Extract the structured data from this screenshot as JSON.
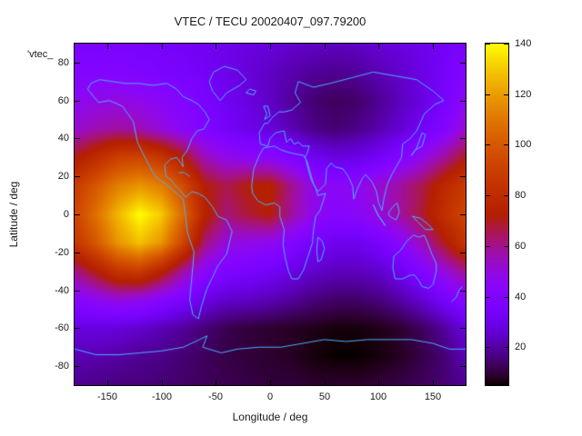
{
  "colors": {
    "background": "#ffffff",
    "text": "#1a1a1a",
    "plot_border": "#000000",
    "coastline": "#4fb0ff"
  },
  "chart_data": {
    "type": "heatmap",
    "title": "VTEC / TECU 20020407_097.79200",
    "key_label": "'vtec_",
    "xlabel": "Longitude / deg",
    "ylabel": "Latitude / deg",
    "xlim": [
      -180,
      180
    ],
    "ylim": [
      -90,
      90
    ],
    "xticks": [
      -150,
      -100,
      -50,
      0,
      50,
      100,
      150
    ],
    "yticks": [
      -80,
      -60,
      -40,
      -20,
      0,
      20,
      40,
      60,
      80
    ],
    "grid_lines": false,
    "legend_position": "none",
    "colorbar": {
      "units": "TECU",
      "ticks": [
        20,
        40,
        60,
        80,
        100,
        120,
        140
      ],
      "range": [
        5,
        140
      ],
      "palette": "gnuplot-rgbformulae-7-5-15 (black-purple-violet-red-orange-yellow)"
    },
    "grid": {
      "lon_start": -180,
      "lon_step": 20,
      "lat_start": 90,
      "lat_step": -15,
      "values": [
        [
          36,
          36,
          36,
          35,
          34,
          33,
          32,
          30,
          28,
          27,
          25,
          24,
          23,
          24,
          26,
          28,
          30,
          33,
          36
        ],
        [
          40,
          40,
          40,
          39,
          37,
          35,
          33,
          30,
          27,
          24,
          21,
          19,
          18,
          19,
          22,
          25,
          29,
          34,
          40
        ],
        [
          46,
          48,
          49,
          47,
          44,
          40,
          36,
          32,
          28,
          24,
          19,
          15,
          13,
          14,
          18,
          23,
          28,
          35,
          46
        ],
        [
          52,
          56,
          58,
          56,
          50,
          44,
          39,
          34,
          30,
          27,
          22,
          17,
          15,
          17,
          21,
          26,
          32,
          40,
          52
        ],
        [
          70,
          80,
          90,
          92,
          85,
          72,
          55,
          48,
          45,
          44,
          39,
          32,
          28,
          29,
          33,
          40,
          48,
          58,
          70
        ],
        [
          88,
          100,
          112,
          118,
          112,
          95,
          72,
          66,
          72,
          74,
          60,
          48,
          44,
          46,
          52,
          58,
          66,
          78,
          88
        ],
        [
          92,
          108,
          126,
          140,
          130,
          105,
          75,
          62,
          68,
          72,
          58,
          47,
          42,
          44,
          50,
          58,
          68,
          82,
          92
        ],
        [
          85,
          100,
          118,
          128,
          118,
          92,
          62,
          50,
          48,
          46,
          40,
          34,
          31,
          31,
          35,
          43,
          55,
          70,
          85
        ],
        [
          60,
          72,
          85,
          88,
          75,
          58,
          44,
          38,
          36,
          33,
          29,
          25,
          23,
          23,
          25,
          31,
          40,
          50,
          60
        ],
        [
          42,
          46,
          50,
          48,
          42,
          36,
          29,
          25,
          24,
          22,
          19,
          16,
          14,
          14,
          16,
          20,
          26,
          34,
          42
        ],
        [
          28,
          28,
          27,
          25,
          22,
          19,
          15,
          12,
          10,
          9,
          8,
          7,
          6,
          6,
          7,
          9,
          13,
          19,
          28
        ],
        [
          22,
          21,
          20,
          18,
          17,
          15,
          13,
          11,
          10,
          9,
          8,
          6,
          5,
          5,
          6,
          8,
          11,
          15,
          22
        ],
        [
          18,
          17,
          16,
          16,
          15,
          14,
          13,
          12,
          11,
          10,
          10,
          9,
          9,
          9,
          10,
          11,
          13,
          15,
          18
        ]
      ]
    },
    "coastlines": [
      [
        [
          -168,
          66
        ],
        [
          -158,
          59
        ],
        [
          -148,
          60
        ],
        [
          -136,
          57
        ],
        [
          -126,
          49
        ],
        [
          -122,
          38
        ],
        [
          -117,
          32
        ],
        [
          -109,
          23
        ],
        [
          -104,
          19
        ],
        [
          -96,
          16
        ],
        [
          -90,
          13
        ],
        [
          -84,
          10
        ],
        [
          -80,
          8
        ],
        [
          -78,
          0
        ],
        [
          -76,
          -10
        ],
        [
          -70,
          -20
        ],
        [
          -72,
          -33
        ],
        [
          -74,
          -45
        ],
        [
          -71,
          -53
        ],
        [
          -66,
          -55
        ],
        [
          -63,
          -48
        ],
        [
          -58,
          -39
        ],
        [
          -52,
          -32
        ],
        [
          -48,
          -27
        ],
        [
          -40,
          -21
        ],
        [
          -35,
          -9
        ],
        [
          -40,
          -3
        ],
        [
          -48,
          -1
        ],
        [
          -53,
          4
        ],
        [
          -60,
          9
        ],
        [
          -66,
          11
        ],
        [
          -72,
          12
        ],
        [
          -78,
          9
        ],
        [
          -82,
          12
        ],
        [
          -87,
          15
        ],
        [
          -91,
          18
        ],
        [
          -96,
          20
        ],
        [
          -97,
          26
        ],
        [
          -92,
          29
        ],
        [
          -86,
          30
        ],
        [
          -82,
          27
        ],
        [
          -80,
          25
        ],
        [
          -81,
          30
        ],
        [
          -76,
          34
        ],
        [
          -72,
          40
        ],
        [
          -67,
          44
        ],
        [
          -61,
          45
        ],
        [
          -56,
          50
        ],
        [
          -60,
          54
        ],
        [
          -66,
          58
        ],
        [
          -72,
          60
        ],
        [
          -80,
          62
        ],
        [
          -86,
          66
        ],
        [
          -95,
          69
        ],
        [
          -108,
          68
        ],
        [
          -120,
          69
        ],
        [
          -133,
          69
        ],
        [
          -145,
          70
        ],
        [
          -157,
          71
        ],
        [
          -165,
          69
        ],
        [
          -168,
          66
        ]
      ],
      [
        [
          -46,
          60
        ],
        [
          -53,
          65
        ],
        [
          -56,
          70
        ],
        [
          -52,
          75
        ],
        [
          -42,
          78
        ],
        [
          -30,
          76
        ],
        [
          -22,
          71
        ],
        [
          -28,
          68
        ],
        [
          -40,
          64
        ],
        [
          -46,
          60
        ]
      ],
      [
        [
          -22,
          64
        ],
        [
          -15,
          63
        ],
        [
          -13,
          65
        ],
        [
          -19,
          66
        ],
        [
          -22,
          64
        ]
      ],
      [
        [
          -5,
          50
        ],
        [
          -3,
          53
        ],
        [
          -6,
          57
        ],
        [
          -2,
          57
        ],
        [
          0,
          52
        ],
        [
          -5,
          50
        ]
      ],
      [
        [
          -10,
          43
        ],
        [
          -5,
          48
        ],
        [
          -2,
          48
        ],
        [
          2,
          51
        ],
        [
          8,
          54
        ],
        [
          13,
          54
        ],
        [
          20,
          55
        ],
        [
          28,
          59
        ],
        [
          23,
          64
        ],
        [
          26,
          70
        ],
        [
          40,
          67
        ],
        [
          55,
          69
        ],
        [
          75,
          72
        ],
        [
          95,
          75
        ],
        [
          115,
          73
        ],
        [
          135,
          71
        ],
        [
          150,
          65
        ],
        [
          160,
          60
        ],
        [
          152,
          58
        ],
        [
          142,
          53
        ],
        [
          135,
          44
        ],
        [
          129,
          40
        ],
        [
          122,
          37
        ],
        [
          121,
          30
        ],
        [
          113,
          22
        ],
        [
          108,
          16
        ],
        [
          105,
          9
        ],
        [
          103,
          2
        ],
        [
          100,
          6
        ],
        [
          98,
          12
        ],
        [
          94,
          17
        ],
        [
          88,
          21
        ],
        [
          85,
          19
        ],
        [
          80,
          13
        ],
        [
          77,
          8
        ],
        [
          76,
          15
        ],
        [
          72,
          20
        ],
        [
          67,
          24
        ],
        [
          60,
          25
        ],
        [
          56,
          27
        ],
        [
          52,
          24
        ],
        [
          51,
          16
        ],
        [
          44,
          12
        ],
        [
          40,
          16
        ],
        [
          34,
          28
        ],
        [
          32,
          30
        ],
        [
          34,
          32
        ],
        [
          36,
          36
        ],
        [
          30,
          36
        ],
        [
          26,
          38
        ],
        [
          22,
          37
        ],
        [
          19,
          40
        ],
        [
          15,
          38
        ],
        [
          13,
          44
        ],
        [
          5,
          43
        ],
        [
          0,
          40
        ],
        [
          -2,
          36
        ],
        [
          -9,
          37
        ],
        [
          -10,
          43
        ]
      ],
      [
        [
          130,
          31
        ],
        [
          134,
          34
        ],
        [
          140,
          36
        ],
        [
          143,
          42
        ],
        [
          140,
          43
        ],
        [
          135,
          35
        ],
        [
          130,
          31
        ]
      ],
      [
        [
          95,
          5
        ],
        [
          99,
          0
        ],
        [
          104,
          -4
        ],
        [
          106,
          -6
        ],
        [
          100,
          -1
        ],
        [
          95,
          5
        ]
      ],
      [
        [
          109,
          1
        ],
        [
          113,
          4
        ],
        [
          117,
          6
        ],
        [
          119,
          1
        ],
        [
          116,
          -3
        ],
        [
          110,
          -1
        ],
        [
          109,
          1
        ]
      ],
      [
        [
          131,
          -1
        ],
        [
          138,
          -2
        ],
        [
          145,
          -5
        ],
        [
          150,
          -8
        ],
        [
          143,
          -8
        ],
        [
          136,
          -4
        ],
        [
          131,
          -1
        ]
      ],
      [
        [
          44,
          -12
        ],
        [
          48,
          -14
        ],
        [
          50,
          -18
        ],
        [
          47,
          -24
        ],
        [
          44,
          -25
        ],
        [
          43,
          -19
        ],
        [
          44,
          -12
        ]
      ],
      [
        [
          114,
          -22
        ],
        [
          113,
          -28
        ],
        [
          115,
          -34
        ],
        [
          122,
          -34
        ],
        [
          129,
          -32
        ],
        [
          133,
          -32
        ],
        [
          137,
          -35
        ],
        [
          140,
          -38
        ],
        [
          146,
          -39
        ],
        [
          150,
          -37
        ],
        [
          153,
          -30
        ],
        [
          153,
          -26
        ],
        [
          149,
          -21
        ],
        [
          145,
          -15
        ],
        [
          142,
          -11
        ],
        [
          137,
          -12
        ],
        [
          132,
          -11
        ],
        [
          126,
          -14
        ],
        [
          120,
          -19
        ],
        [
          114,
          -22
        ]
      ],
      [
        [
          167,
          -46
        ],
        [
          171,
          -44
        ],
        [
          174,
          -40
        ],
        [
          177,
          -38
        ]
      ],
      [
        [
          -180,
          -71
        ],
        [
          -160,
          -74
        ],
        [
          -140,
          -74
        ],
        [
          -120,
          -73
        ],
        [
          -100,
          -72
        ],
        [
          -80,
          -70
        ],
        [
          -65,
          -66
        ],
        [
          -58,
          -64
        ],
        [
          -62,
          -70
        ],
        [
          -45,
          -73
        ],
        [
          -30,
          -71
        ],
        [
          -10,
          -70
        ],
        [
          10,
          -70
        ],
        [
          30,
          -68
        ],
        [
          50,
          -66
        ],
        [
          70,
          -67
        ],
        [
          90,
          -66
        ],
        [
          110,
          -66
        ],
        [
          130,
          -66
        ],
        [
          150,
          -68
        ],
        [
          165,
          -71
        ],
        [
          180,
          -71
        ]
      ],
      [
        [
          -6,
          35
        ],
        [
          -10,
          31
        ],
        [
          -15,
          24
        ],
        [
          -17,
          15
        ],
        [
          -16,
          11
        ],
        [
          -11,
          7
        ],
        [
          -4,
          5
        ],
        [
          4,
          6
        ],
        [
          9,
          4
        ],
        [
          9,
          -1
        ],
        [
          13,
          -8
        ],
        [
          12,
          -16
        ],
        [
          14,
          -23
        ],
        [
          17,
          -30
        ],
        [
          20,
          -34
        ],
        [
          26,
          -34
        ],
        [
          31,
          -29
        ],
        [
          35,
          -22
        ],
        [
          39,
          -15
        ],
        [
          40,
          -8
        ],
        [
          42,
          -1
        ],
        [
          46,
          2
        ],
        [
          51,
          11
        ],
        [
          44,
          10
        ],
        [
          42,
          14
        ],
        [
          38,
          18
        ],
        [
          35,
          24
        ],
        [
          33,
          29
        ],
        [
          31,
          31
        ],
        [
          22,
          32
        ],
        [
          15,
          33
        ],
        [
          10,
          34
        ],
        [
          4,
          36
        ],
        [
          -6,
          35
        ]
      ],
      [
        [
          -84,
          22
        ],
        [
          -79,
          22
        ],
        [
          -74,
          20
        ]
      ]
    ]
  }
}
